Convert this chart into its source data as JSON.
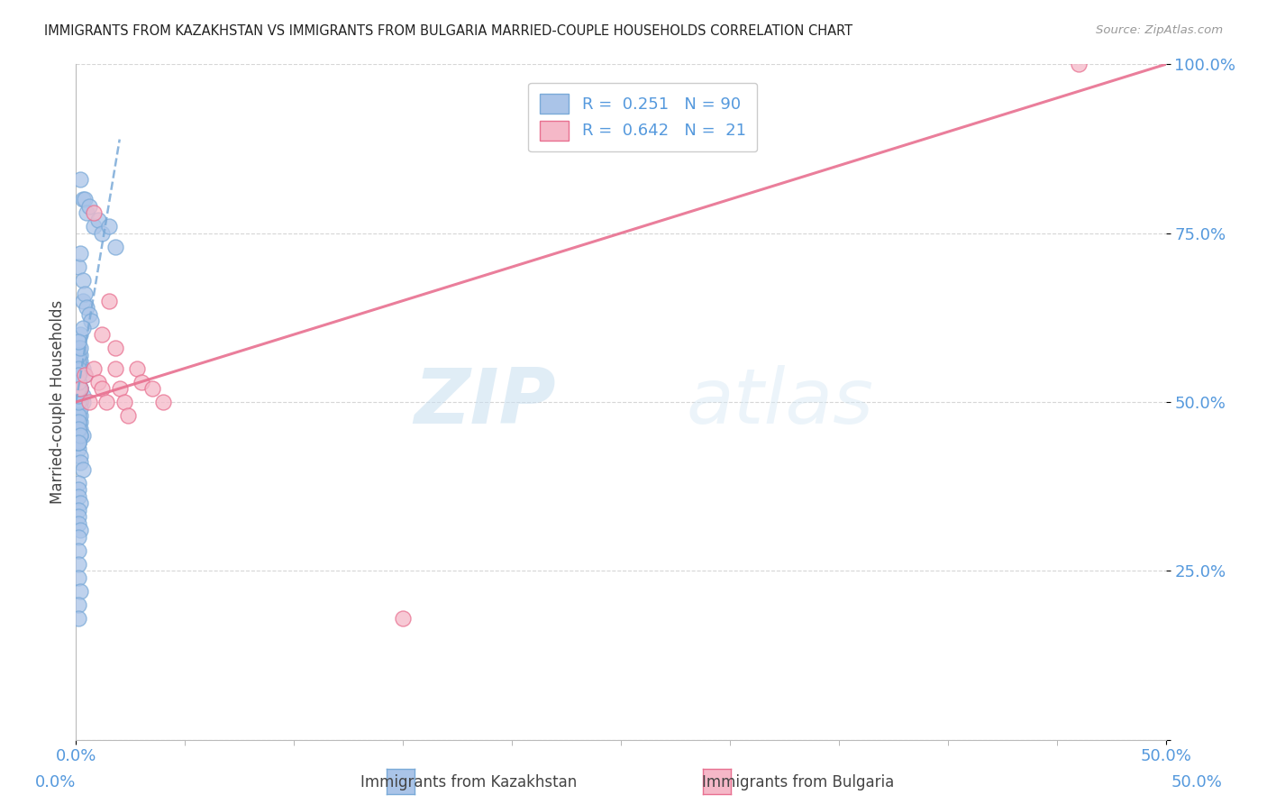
{
  "title": "IMMIGRANTS FROM KAZAKHSTAN VS IMMIGRANTS FROM BULGARIA MARRIED-COUPLE HOUSEHOLDS CORRELATION CHART",
  "source": "Source: ZipAtlas.com",
  "xlabel_left": "Immigrants from Kazakhstan",
  "xlabel_right": "Immigrants from Bulgaria",
  "ylabel": "Married-couple Households",
  "xmin": 0.0,
  "xmax": 0.5,
  "ymin": 0.0,
  "ymax": 1.0,
  "kazakhstan_R": 0.251,
  "kazakhstan_N": 90,
  "bulgaria_R": 0.642,
  "bulgaria_N": 21,
  "kazakhstan_color": "#aac4e8",
  "bulgaria_color": "#f5b8c8",
  "kazakhstan_edge_color": "#7aaad8",
  "bulgaria_edge_color": "#e87090",
  "kazakhstan_line_color": "#7aaad8",
  "bulgaria_line_color": "#e87090",
  "kazakhstan_scatter_x": [
    0.002,
    0.003,
    0.004,
    0.005,
    0.006,
    0.008,
    0.01,
    0.012,
    0.015,
    0.018,
    0.001,
    0.002,
    0.003,
    0.003,
    0.004,
    0.005,
    0.006,
    0.007,
    0.002,
    0.003,
    0.001,
    0.002,
    0.002,
    0.003,
    0.004,
    0.001,
    0.002,
    0.003,
    0.001,
    0.002,
    0.001,
    0.001,
    0.002,
    0.002,
    0.003,
    0.001,
    0.001,
    0.002,
    0.002,
    0.003,
    0.001,
    0.001,
    0.002,
    0.001,
    0.001,
    0.002,
    0.001,
    0.001,
    0.002,
    0.001,
    0.001,
    0.001,
    0.002,
    0.001,
    0.001,
    0.002,
    0.001,
    0.003,
    0.001,
    0.002,
    0.001,
    0.001,
    0.001,
    0.002,
    0.002,
    0.001,
    0.001,
    0.001,
    0.002,
    0.001,
    0.001,
    0.001,
    0.001,
    0.002,
    0.001,
    0.001,
    0.001,
    0.002,
    0.001,
    0.001,
    0.001,
    0.001,
    0.002,
    0.001,
    0.001,
    0.001,
    0.001,
    0.001,
    0.001,
    0.001
  ],
  "kazakhstan_scatter_y": [
    0.83,
    0.8,
    0.8,
    0.78,
    0.79,
    0.76,
    0.77,
    0.75,
    0.76,
    0.73,
    0.7,
    0.72,
    0.68,
    0.65,
    0.66,
    0.64,
    0.63,
    0.62,
    0.6,
    0.61,
    0.58,
    0.57,
    0.56,
    0.55,
    0.54,
    0.53,
    0.52,
    0.51,
    0.5,
    0.5,
    0.49,
    0.48,
    0.47,
    0.46,
    0.45,
    0.44,
    0.43,
    0.42,
    0.41,
    0.4,
    0.5,
    0.51,
    0.52,
    0.53,
    0.54,
    0.55,
    0.56,
    0.57,
    0.58,
    0.59,
    0.5,
    0.49,
    0.48,
    0.47,
    0.46,
    0.45,
    0.44,
    0.5,
    0.51,
    0.52,
    0.53,
    0.54,
    0.55,
    0.5,
    0.49,
    0.48,
    0.47,
    0.46,
    0.45,
    0.44,
    0.38,
    0.37,
    0.36,
    0.35,
    0.34,
    0.33,
    0.32,
    0.31,
    0.3,
    0.28,
    0.26,
    0.24,
    0.22,
    0.2,
    0.18,
    0.5,
    0.51,
    0.52,
    0.53,
    0.54
  ],
  "bulgaria_scatter_x": [
    0.002,
    0.004,
    0.006,
    0.008,
    0.01,
    0.012,
    0.014,
    0.018,
    0.02,
    0.022,
    0.024,
    0.028,
    0.03,
    0.015,
    0.035,
    0.04,
    0.008,
    0.012,
    0.018,
    0.15,
    0.46
  ],
  "bulgaria_scatter_y": [
    0.52,
    0.54,
    0.5,
    0.55,
    0.53,
    0.52,
    0.5,
    0.55,
    0.52,
    0.5,
    0.48,
    0.55,
    0.53,
    0.65,
    0.52,
    0.5,
    0.78,
    0.6,
    0.58,
    0.18,
    1.0
  ],
  "yticks": [
    0.0,
    0.25,
    0.5,
    0.75,
    1.0
  ],
  "ytick_labels": [
    "",
    "25.0%",
    "50.0%",
    "75.0%",
    "100.0%"
  ],
  "xtick_left": 0.0,
  "xtick_right": 0.5,
  "xtick_left_label": "0.0%",
  "xtick_right_label": "50.0%",
  "watermark_zip": "ZIP",
  "watermark_atlas": "atlas",
  "background_color": "#ffffff",
  "grid_color": "#cccccc",
  "tick_color": "#5599dd",
  "legend_text_color": "#5599dd"
}
